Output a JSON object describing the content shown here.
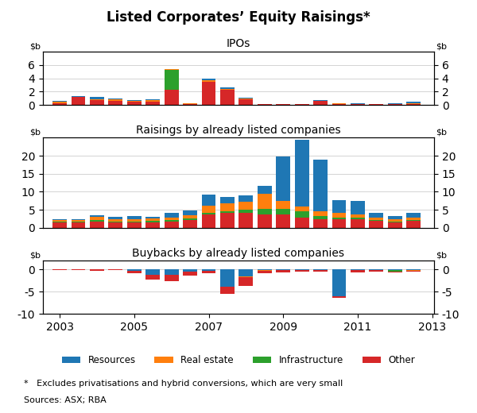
{
  "title": "Listed Corporates’ Equity Raisings*",
  "legend": "lower center",
  "annotations": [
    "*   Excludes privatisations and hybrid conversions, which are very small",
    "Sources: ASX; RBA"
  ],
  "chart_data": [
    {
      "type": "bar",
      "stacked": true,
      "title": "IPOs",
      "ylabel": "$b",
      "y2label": "$b",
      "x": [
        2003.0,
        2003.5,
        2004.0,
        2004.5,
        2005.0,
        2005.5,
        2006.0,
        2006.5,
        2007.0,
        2007.5,
        2008.0,
        2008.5,
        2009.0,
        2009.5,
        2010.0,
        2010.5,
        2011.0,
        2011.5,
        2012.0,
        2012.5
      ],
      "xlim": [
        2002.55,
        2013.05
      ],
      "ylim": [
        0,
        8
      ],
      "yticks": [
        0,
        2,
        4,
        6
      ],
      "y2lim": [
        0,
        8
      ],
      "y2ticks": [
        0,
        2,
        4,
        6
      ],
      "grid": true,
      "tick_labels": "y",
      "series": [
        {
          "name": "Other",
          "color": "#d62728",
          "values": [
            0.3,
            1.2,
            0.7,
            0.6,
            0.5,
            0.5,
            2.3,
            0.15,
            3.5,
            2.3,
            0.9,
            0.1,
            0.1,
            0.1,
            0.6,
            0.15,
            0.1,
            0.1,
            0.15,
            0.1
          ]
        },
        {
          "name": "Infrastructure",
          "color": "#2ca02c",
          "values": [
            0.0,
            0.0,
            0.0,
            0.05,
            0.0,
            0.0,
            3.0,
            0.0,
            0.0,
            0.0,
            0.0,
            0.0,
            0.0,
            0.0,
            0.0,
            0.0,
            0.0,
            0.0,
            0.0,
            0.0
          ]
        },
        {
          "name": "Real estate",
          "color": "#ff7f0e",
          "values": [
            0.2,
            0.05,
            0.1,
            0.2,
            0.15,
            0.2,
            0.05,
            0.05,
            0.15,
            0.1,
            0.05,
            0.0,
            0.0,
            0.0,
            0.05,
            0.05,
            0.05,
            0.0,
            0.0,
            0.2
          ]
        },
        {
          "name": "Resources",
          "color": "#1f77b4",
          "values": [
            0.05,
            0.1,
            0.4,
            0.15,
            0.1,
            0.1,
            0.05,
            0.05,
            0.3,
            0.25,
            0.1,
            0.0,
            0.05,
            0.05,
            0.1,
            0.1,
            0.1,
            0.05,
            0.05,
            0.15
          ]
        }
      ]
    },
    {
      "type": "bar",
      "stacked": true,
      "title": "Raisings by already listed companies",
      "ylabel": "$b",
      "y2label": "$b",
      "x": [
        2003.0,
        2003.5,
        2004.0,
        2004.5,
        2005.0,
        2005.5,
        2006.0,
        2006.5,
        2007.0,
        2007.5,
        2008.0,
        2008.5,
        2009.0,
        2009.5,
        2010.0,
        2010.5,
        2011.0,
        2011.5,
        2012.0,
        2012.5
      ],
      "xlim": [
        2002.55,
        2013.05
      ],
      "ylim": [
        0,
        25
      ],
      "yticks": [
        0,
        5,
        10,
        15,
        20
      ],
      "y2lim": [
        0,
        25
      ],
      "y2ticks": [
        0,
        5,
        10,
        15,
        20
      ],
      "grid": true,
      "tick_labels": "y",
      "series": [
        {
          "name": "Other",
          "color": "#d62728",
          "values": [
            1.5,
            1.5,
            1.8,
            1.4,
            1.4,
            1.4,
            1.8,
            2.2,
            3.8,
            4.2,
            4.2,
            3.8,
            3.8,
            2.8,
            2.3,
            2.3,
            2.3,
            1.9,
            1.4,
            1.9
          ]
        },
        {
          "name": "Infrastructure",
          "color": "#2ca02c",
          "values": [
            0.3,
            0.3,
            0.35,
            0.35,
            0.35,
            0.45,
            0.35,
            0.45,
            0.45,
            0.45,
            0.9,
            1.4,
            1.4,
            1.8,
            0.9,
            0.45,
            0.45,
            0.25,
            0.35,
            0.25
          ]
        },
        {
          "name": "Real estate",
          "color": "#ff7f0e",
          "values": [
            0.45,
            0.45,
            0.9,
            0.7,
            0.7,
            0.7,
            0.7,
            0.9,
            1.8,
            2.2,
            2.2,
            4.2,
            2.2,
            1.3,
            1.3,
            1.3,
            0.9,
            0.7,
            0.7,
            0.7
          ]
        },
        {
          "name": "Resources",
          "color": "#1f77b4",
          "values": [
            0.25,
            0.25,
            0.45,
            0.7,
            0.8,
            0.45,
            1.3,
            1.3,
            3.2,
            1.8,
            1.8,
            2.3,
            12.5,
            18.5,
            14.5,
            3.7,
            3.7,
            1.3,
            0.9,
            1.3
          ]
        }
      ]
    },
    {
      "type": "bar",
      "stacked": true,
      "title": "Buybacks by already listed companies",
      "ylabel": "$b",
      "y2label": "$b",
      "x": [
        2003.0,
        2003.5,
        2004.0,
        2004.5,
        2005.0,
        2005.5,
        2006.0,
        2006.5,
        2007.0,
        2007.5,
        2008.0,
        2008.5,
        2009.0,
        2009.5,
        2010.0,
        2010.5,
        2011.0,
        2011.5,
        2012.0,
        2012.5
      ],
      "xlim": [
        2002.55,
        2013.05
      ],
      "xticks": [
        2003,
        2005,
        2007,
        2009,
        2011,
        2013
      ],
      "ylim": [
        -10,
        2
      ],
      "yticks": [
        -10,
        -5,
        0
      ],
      "y2lim": [
        -10,
        2
      ],
      "y2ticks": [
        -10,
        -5,
        0
      ],
      "grid": true,
      "series": [
        {
          "name": "Resources",
          "color": "#1f77b4",
          "values": [
            0.0,
            0.0,
            0.0,
            0.0,
            -0.3,
            -1.2,
            -1.2,
            -0.4,
            -0.3,
            -3.8,
            -1.5,
            -0.2,
            -0.2,
            -0.1,
            -0.1,
            -6.0,
            -0.2,
            -0.1,
            -0.05,
            -0.05
          ]
        },
        {
          "name": "Real estate",
          "color": "#ff7f0e",
          "values": [
            0.0,
            0.0,
            0.0,
            0.0,
            0.0,
            0.0,
            0.0,
            0.0,
            0.0,
            -0.15,
            -0.15,
            -0.1,
            0.0,
            0.0,
            0.0,
            0.0,
            0.0,
            0.0,
            -0.1,
            -0.2
          ]
        },
        {
          "name": "Infrastructure",
          "color": "#2ca02c",
          "values": [
            0.0,
            0.0,
            0.0,
            0.0,
            0.0,
            0.0,
            0.0,
            0.0,
            0.0,
            0.0,
            0.0,
            0.0,
            0.0,
            0.0,
            0.0,
            0.0,
            0.0,
            0.0,
            -0.3,
            0.0
          ]
        },
        {
          "name": "Other",
          "color": "#d62728",
          "values": [
            -0.2,
            -0.2,
            -0.3,
            -0.2,
            -0.5,
            -1.0,
            -1.5,
            -1.0,
            -0.5,
            -1.5,
            -2.0,
            -0.5,
            -0.5,
            -0.3,
            -0.3,
            -0.3,
            -0.5,
            -0.3,
            -0.2,
            -0.3
          ]
        }
      ]
    }
  ]
}
